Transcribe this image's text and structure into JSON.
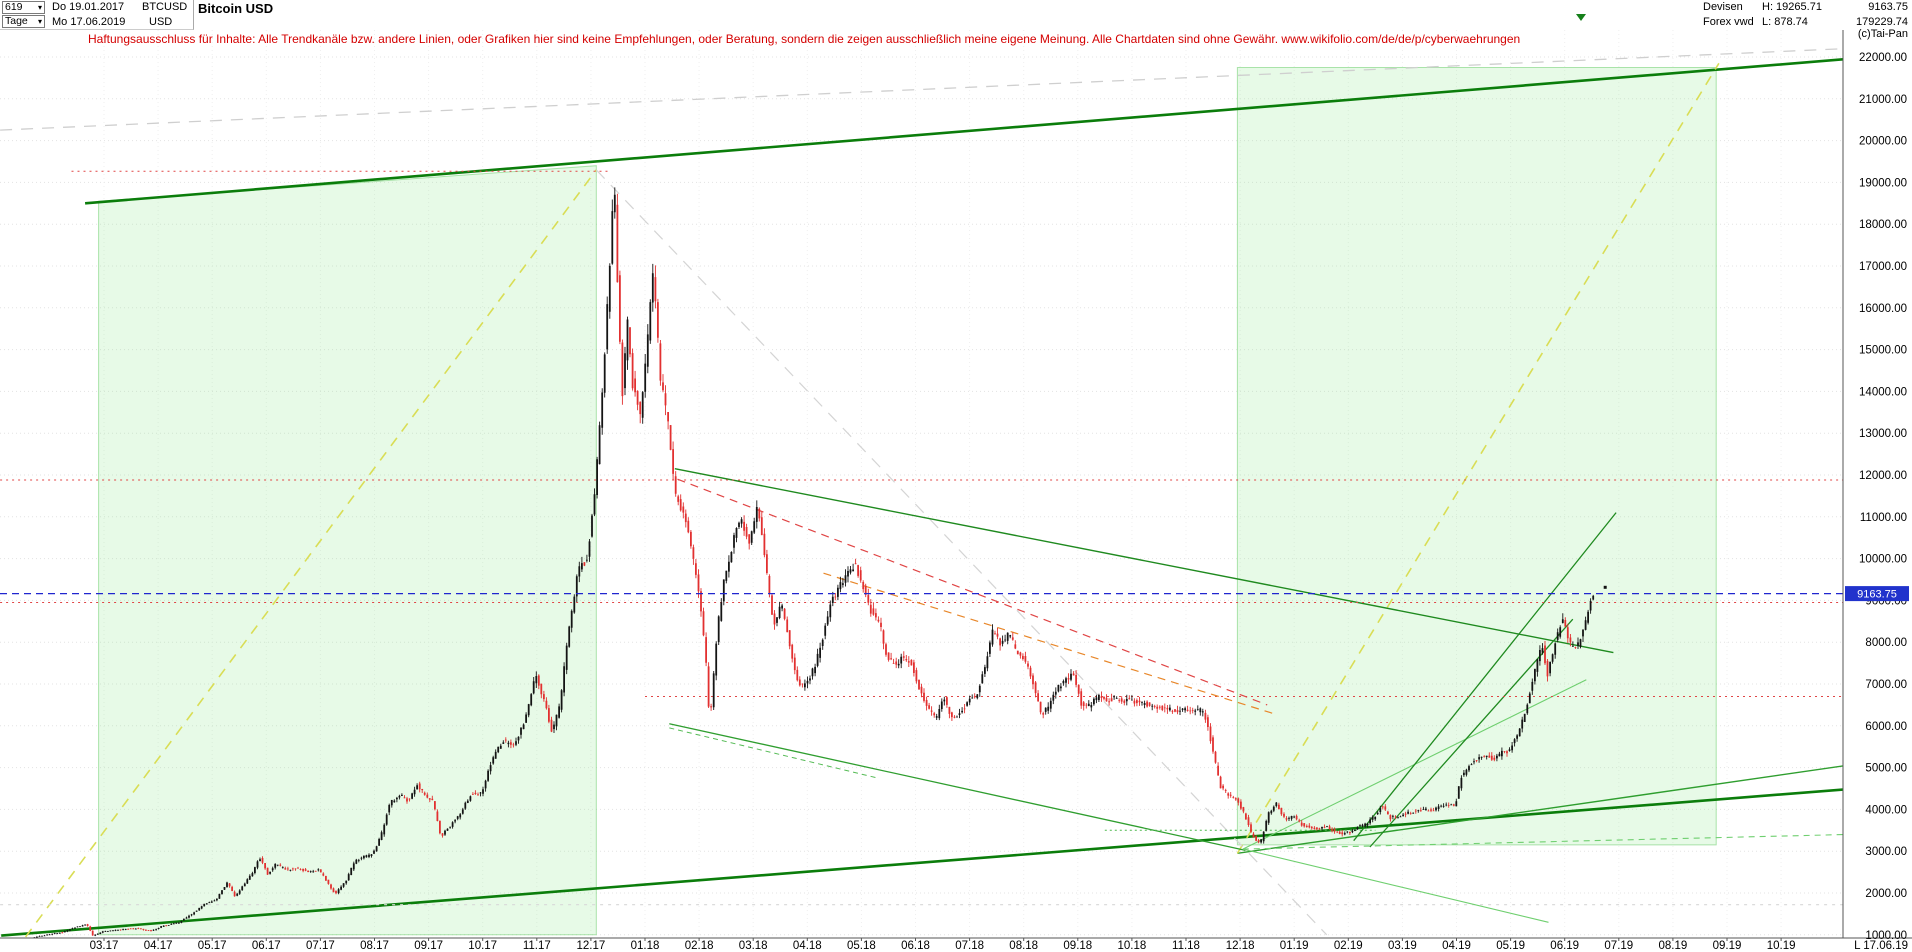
{
  "header": {
    "bars_count": "619",
    "period": "Tage",
    "date_start": "Do 19.01.2017",
    "date_end": "Mo 17.06.2019",
    "symbol": "BTCUSD",
    "currency": "USD",
    "instrument": "Bitcoin USD",
    "market": "Devisen",
    "feed": "Forex vwd",
    "high": "H: 19265.71",
    "low": "L: 878.74",
    "last": "9163.75",
    "volume": "179229.74",
    "copyright": "(c)Tai-Pan"
  },
  "icons": {
    "chevron_down": "▾"
  },
  "disclaimer": "Haftungsausschluss für Inhalte: Alle Trendkanäle bzw. andere Linien, oder Grafiken hier sind keine Empfehlungen, oder Beratung, sondern die zeigen ausschließlich meine eigene Meinung. Alle Chartdaten sind ohne Gewähr.  www.wikifolio.com/de/de/p/cyberwaehrungen",
  "axis": {
    "y_min": 1000,
    "y_max": 22000,
    "y_step": 1000,
    "x_labels": [
      "03.17",
      "04.17",
      "05.17",
      "06.17",
      "07.17",
      "08.17",
      "09.17",
      "10.17",
      "11.17",
      "12.17",
      "01.18",
      "02.18",
      "03.18",
      "04.18",
      "05.18",
      "06.18",
      "07.18",
      "08.18",
      "09.18",
      "10.18",
      "11.18",
      "12.18",
      "01.19",
      "02.19",
      "03.19",
      "04.19",
      "05.19",
      "06.19",
      "07.19",
      "08.19",
      "09.19",
      "10.19"
    ],
    "bottom_right_label": "L 17.06.19"
  },
  "current_price": {
    "value": 9163.75,
    "label": "9163.75",
    "line_color": "#2026cf",
    "badge_bg": "#2133cc",
    "badge_text": "#ffffff"
  },
  "chart_data": {
    "type": "candlestick",
    "title": "Bitcoin USD",
    "symbol": "BTCUSD",
    "timeframe": "Tage",
    "bars": 619,
    "date_range": [
      "19.01.2017",
      "17.06.2019"
    ],
    "data_high": 19265.71,
    "data_low": 878.74,
    "last_close": 9163.75,
    "ylim": [
      1000,
      22000
    ],
    "x_month_start": -1.45,
    "x_month_end": 27.55,
    "up_color": "#141414",
    "down_color": "#e23030",
    "price_path": [
      [
        -1.45,
        895
      ],
      [
        -1.2,
        960
      ],
      [
        -1.0,
        1010
      ],
      [
        -0.75,
        1060
      ],
      [
        -0.5,
        1180
      ],
      [
        -0.3,
        1255
      ],
      [
        -0.18,
        975
      ],
      [
        0,
        1080
      ],
      [
        0.3,
        1120
      ],
      [
        0.6,
        1160
      ],
      [
        0.9,
        1090
      ],
      [
        1.1,
        1210
      ],
      [
        1.4,
        1290
      ],
      [
        1.7,
        1550
      ],
      [
        1.9,
        1750
      ],
      [
        2.1,
        1850
      ],
      [
        2.3,
        2250
      ],
      [
        2.45,
        1900
      ],
      [
        2.6,
        2200
      ],
      [
        2.75,
        2450
      ],
      [
        2.9,
        2850
      ],
      [
        3.05,
        2460
      ],
      [
        3.2,
        2700
      ],
      [
        3.4,
        2550
      ],
      [
        3.6,
        2600
      ],
      [
        3.8,
        2500
      ],
      [
        4.0,
        2550
      ],
      [
        4.15,
        2250
      ],
      [
        4.3,
        1975
      ],
      [
        4.5,
        2300
      ],
      [
        4.65,
        2750
      ],
      [
        4.8,
        2850
      ],
      [
        5.0,
        2950
      ],
      [
        5.15,
        3400
      ],
      [
        5.3,
        4150
      ],
      [
        5.5,
        4350
      ],
      [
        5.65,
        4200
      ],
      [
        5.8,
        4600
      ],
      [
        5.95,
        4350
      ],
      [
        6.1,
        4200
      ],
      [
        6.25,
        3350
      ],
      [
        6.45,
        3650
      ],
      [
        6.6,
        3900
      ],
      [
        6.8,
        4350
      ],
      [
        7.0,
        4400
      ],
      [
        7.2,
        5200
      ],
      [
        7.4,
        5650
      ],
      [
        7.6,
        5500
      ],
      [
        7.8,
        6100
      ],
      [
        8.0,
        7200
      ],
      [
        8.15,
        6650
      ],
      [
        8.3,
        5850
      ],
      [
        8.45,
        6500
      ],
      [
        8.6,
        8150
      ],
      [
        8.8,
        9800
      ],
      [
        8.95,
        9950
      ],
      [
        9.1,
        11600
      ],
      [
        9.25,
        14300
      ],
      [
        9.38,
        17200
      ],
      [
        9.45,
        19200
      ],
      [
        9.52,
        16400
      ],
      [
        9.6,
        13900
      ],
      [
        9.7,
        15600
      ],
      [
        9.8,
        14100
      ],
      [
        9.95,
        13400
      ],
      [
        10.05,
        14900
      ],
      [
        10.18,
        17000
      ],
      [
        10.3,
        14400
      ],
      [
        10.45,
        13200
      ],
      [
        10.6,
        11400
      ],
      [
        10.75,
        11100
      ],
      [
        10.9,
        10100
      ],
      [
        11.05,
        8900
      ],
      [
        11.15,
        7500
      ],
      [
        11.22,
        6050
      ],
      [
        11.35,
        8200
      ],
      [
        11.5,
        9600
      ],
      [
        11.65,
        10400
      ],
      [
        11.8,
        11000
      ],
      [
        11.95,
        10300
      ],
      [
        12.1,
        11300
      ],
      [
        12.25,
        9900
      ],
      [
        12.4,
        8400
      ],
      [
        12.55,
        8900
      ],
      [
        12.7,
        7900
      ],
      [
        12.85,
        7000
      ],
      [
        13.0,
        6950
      ],
      [
        13.15,
        7400
      ],
      [
        13.3,
        8050
      ],
      [
        13.45,
        8900
      ],
      [
        13.6,
        9300
      ],
      [
        13.75,
        9650
      ],
      [
        13.9,
        9850
      ],
      [
        14.05,
        9350
      ],
      [
        14.2,
        8750
      ],
      [
        14.35,
        8500
      ],
      [
        14.5,
        7600
      ],
      [
        14.65,
        7450
      ],
      [
        14.8,
        7650
      ],
      [
        14.95,
        7500
      ],
      [
        15.1,
        6850
      ],
      [
        15.25,
        6450
      ],
      [
        15.4,
        6150
      ],
      [
        15.55,
        6700
      ],
      [
        15.7,
        6150
      ],
      [
        15.85,
        6300
      ],
      [
        16.0,
        6600
      ],
      [
        16.15,
        6700
      ],
      [
        16.3,
        7400
      ],
      [
        16.45,
        8250
      ],
      [
        16.6,
        7950
      ],
      [
        16.75,
        8200
      ],
      [
        16.9,
        7750
      ],
      [
        17.05,
        7550
      ],
      [
        17.2,
        7000
      ],
      [
        17.35,
        6250
      ],
      [
        17.5,
        6500
      ],
      [
        17.65,
        6900
      ],
      [
        17.8,
        7100
      ],
      [
        17.95,
        7250
      ],
      [
        18.1,
        6450
      ],
      [
        18.25,
        6500
      ],
      [
        18.4,
        6700
      ],
      [
        18.55,
        6600
      ],
      [
        18.7,
        6650
      ],
      [
        18.85,
        6600
      ],
      [
        19.0,
        6600
      ],
      [
        19.2,
        6550
      ],
      [
        19.4,
        6480
      ],
      [
        19.6,
        6420
      ],
      [
        19.8,
        6380
      ],
      [
        20.0,
        6400
      ],
      [
        20.2,
        6380
      ],
      [
        20.35,
        6350
      ],
      [
        20.5,
        5550
      ],
      [
        20.65,
        4550
      ],
      [
        20.8,
        4350
      ],
      [
        20.95,
        4250
      ],
      [
        21.1,
        3900
      ],
      [
        21.25,
        3350
      ],
      [
        21.4,
        3200
      ],
      [
        21.55,
        3900
      ],
      [
        21.7,
        4150
      ],
      [
        21.85,
        3750
      ],
      [
        22.0,
        3850
      ],
      [
        22.15,
        3650
      ],
      [
        22.3,
        3580
      ],
      [
        22.45,
        3520
      ],
      [
        22.6,
        3600
      ],
      [
        22.75,
        3480
      ],
      [
        22.9,
        3420
      ],
      [
        23.05,
        3450
      ],
      [
        23.2,
        3580
      ],
      [
        23.35,
        3650
      ],
      [
        23.5,
        3820
      ],
      [
        23.65,
        4100
      ],
      [
        23.8,
        3800
      ],
      [
        23.95,
        3850
      ],
      [
        24.1,
        3900
      ],
      [
        24.25,
        3950
      ],
      [
        24.4,
        4000
      ],
      [
        24.55,
        3980
      ],
      [
        24.7,
        4050
      ],
      [
        24.85,
        4100
      ],
      [
        25.0,
        4100
      ],
      [
        25.1,
        4750
      ],
      [
        25.25,
        5050
      ],
      [
        25.4,
        5200
      ],
      [
        25.55,
        5300
      ],
      [
        25.7,
        5200
      ],
      [
        25.85,
        5350
      ],
      [
        26.0,
        5400
      ],
      [
        26.15,
        5800
      ],
      [
        26.3,
        6350
      ],
      [
        26.45,
        7250
      ],
      [
        26.6,
        7950
      ],
      [
        26.7,
        7200
      ],
      [
        26.85,
        8000
      ],
      [
        27.0,
        8650
      ],
      [
        27.1,
        7950
      ],
      [
        27.25,
        7850
      ],
      [
        27.4,
        8500
      ],
      [
        27.5,
        8950
      ],
      [
        27.55,
        9163.75
      ]
    ],
    "regions": [
      {
        "id": "trend-channel-2017",
        "points": [
          [
            -0.1,
            18550
          ],
          [
            9.1,
            19400
          ],
          [
            9.1,
            1000
          ],
          [
            -0.1,
            1000
          ]
        ],
        "fill": "rgba(144,230,144,0.22)",
        "stroke": "rgba(120,210,120,0.6)"
      },
      {
        "id": "trend-channel-2019",
        "points": [
          [
            20.95,
            21750
          ],
          [
            29.8,
            21750
          ],
          [
            29.8,
            3150
          ],
          [
            20.95,
            3150
          ]
        ],
        "fill": "rgba(144,230,144,0.22)",
        "stroke": "rgba(120,210,120,0.6)"
      }
    ],
    "trend_lines": [
      {
        "id": "channel-top",
        "m1": -0.35,
        "p1": 18500,
        "m2": 32.2,
        "p2": 21950,
        "c": "#0b7d0b",
        "w": 2.6
      },
      {
        "id": "channel-bottom",
        "m1": -1.9,
        "p1": 980,
        "m2": 32.2,
        "p2": 4480,
        "c": "#0b7d0b",
        "w": 2.6
      },
      {
        "id": "support-rising-right",
        "m1": 20.95,
        "p1": 2950,
        "m2": 32.2,
        "p2": 5050,
        "c": "#2f9e2f",
        "w": 1.4
      },
      {
        "id": "rally-2017-trendline",
        "m1": -1.45,
        "p1": 950,
        "m2": 9.1,
        "p2": 19300,
        "c": "#d9dd55",
        "w": 1.6,
        "d": "10 8"
      },
      {
        "id": "rally-2019-trendline",
        "m1": 20.95,
        "p1": 2950,
        "m2": 29.85,
        "p2": 21850,
        "c": "#d9dd55",
        "w": 1.6,
        "d": "10 8"
      },
      {
        "id": "gray-top-line",
        "m1": -1.92,
        "p1": 20250,
        "m2": 32.2,
        "p2": 22200,
        "c": "#cfcfcf",
        "w": 1.3,
        "d": "12 9"
      },
      {
        "id": "gray-diagonal",
        "m1": 9.1,
        "p1": 19300,
        "m2": 22.6,
        "p2": 1000,
        "c": "#d4d4d4",
        "w": 1.2,
        "d": "12 9"
      },
      {
        "id": "gray-bottom-line",
        "m1": -1.92,
        "p1": 1720,
        "m2": 32.2,
        "p2": 1720,
        "c": "#d8d8d8",
        "w": 1.1,
        "d": "3 5"
      },
      {
        "id": "resistance-descending",
        "m1": 10.55,
        "p1": 12150,
        "m2": 27.9,
        "p2": 7750,
        "c": "#1f8a1f",
        "w": 1.4
      },
      {
        "id": "support-descending-2018",
        "m1": 10.45,
        "p1": 6050,
        "m2": 21.1,
        "p2": 3020,
        "c": "#2f9e2f",
        "w": 1.3
      },
      {
        "id": "flag-dashed-2018",
        "m1": 10.45,
        "p1": 5950,
        "m2": 14.3,
        "p2": 4750,
        "c": "#55bb55",
        "w": 1,
        "d": "5 4"
      },
      {
        "id": "fan-flat",
        "m1": 21.05,
        "p1": 3050,
        "m2": 32.2,
        "p2": 3400,
        "c": "#6fcf6f",
        "w": 1.1,
        "d": "6 5"
      },
      {
        "id": "fan-descending",
        "m1": 21.05,
        "p1": 3050,
        "m2": 26.7,
        "p2": 1300,
        "c": "#6fcf6f",
        "w": 1.1
      },
      {
        "id": "fan-ascending",
        "m1": 21.05,
        "p1": 3050,
        "m2": 27.4,
        "p2": 7100,
        "c": "#6fcf6f",
        "w": 1.1
      },
      {
        "id": "green-dotted-support",
        "m1": 18.5,
        "p1": 3500,
        "m2": 23.5,
        "p2": 3500,
        "c": "#4db84d",
        "w": 1,
        "d": "2 3"
      },
      {
        "id": "rally-steep-a",
        "m1": 23.1,
        "p1": 3250,
        "m2": 27.95,
        "p2": 11100,
        "c": "#1f8a1f",
        "w": 1.3
      },
      {
        "id": "rally-steep-b",
        "m1": 23.4,
        "p1": 3100,
        "m2": 27.15,
        "p2": 8550,
        "c": "#1f8a1f",
        "w": 1.3
      },
      {
        "id": "resistance-ath",
        "m1": -0.6,
        "p1": 19265.71,
        "m2": 9.35,
        "p2": 19265.71,
        "c": "#e04545",
        "w": 1,
        "d": "2 4"
      },
      {
        "id": "resistance-11880",
        "m1": -1.92,
        "p1": 11880,
        "m2": 32.2,
        "p2": 11880,
        "c": "#e04545",
        "w": 1,
        "d": "2 4"
      },
      {
        "id": "resistance-8950",
        "m1": -1.92,
        "p1": 8950,
        "m2": 32.2,
        "p2": 8950,
        "c": "#e04545",
        "w": 1,
        "d": "2 4"
      },
      {
        "id": "resistance-6700",
        "m1": 10.0,
        "p1": 6700,
        "m2": 32.2,
        "p2": 6700,
        "c": "#e04545",
        "w": 1,
        "d": "2 4"
      },
      {
        "id": "red-descending",
        "m1": 10.6,
        "p1": 11900,
        "m2": 21.5,
        "p2": 6500,
        "c": "#e04545",
        "w": 1.2,
        "d": "8 6"
      },
      {
        "id": "orange-descending",
        "m1": 13.3,
        "p1": 9650,
        "m2": 21.6,
        "p2": 6300,
        "c": "#e8872a",
        "w": 1.2,
        "d": "8 6"
      }
    ]
  }
}
